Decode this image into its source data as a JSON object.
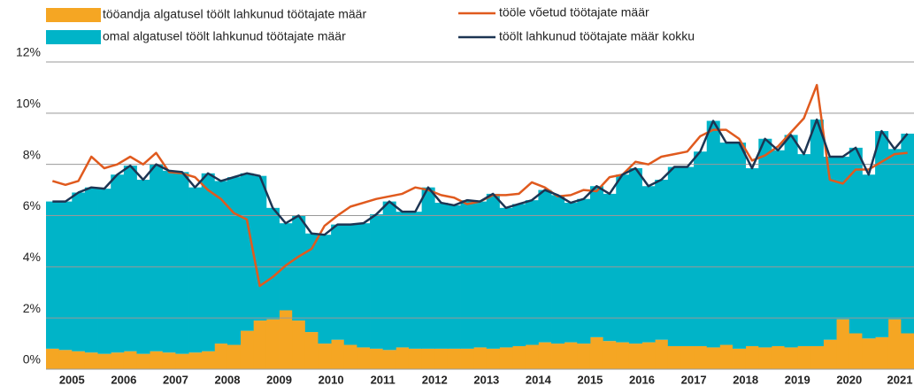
{
  "chart_data": {
    "type": "bar",
    "stacked": true,
    "categories": [
      "2005",
      null,
      null,
      null,
      "2006",
      null,
      null,
      null,
      "2007",
      null,
      null,
      null,
      "2008",
      null,
      null,
      null,
      "2009",
      null,
      null,
      null,
      "2010",
      null,
      null,
      null,
      "2011",
      null,
      null,
      null,
      "2012",
      null,
      null,
      null,
      "2013",
      null,
      null,
      null,
      "2014",
      null,
      null,
      null,
      "2015",
      null,
      null,
      null,
      "2016",
      null,
      null,
      null,
      "2017",
      null,
      null,
      null,
      "2018",
      null,
      null,
      null,
      "2019",
      null,
      null,
      null,
      "2020",
      null,
      null,
      null,
      "2021",
      null,
      null
    ],
    "series": [
      {
        "name": "tööandja algatusel töölt lahkunud töötajate määr",
        "type": "bar",
        "color": "#f5a623",
        "values": [
          0.8,
          0.75,
          0.7,
          0.65,
          0.6,
          0.65,
          0.7,
          0.6,
          0.7,
          0.65,
          0.6,
          0.65,
          0.7,
          1.0,
          0.95,
          1.5,
          1.9,
          1.95,
          2.3,
          1.9,
          1.45,
          1.0,
          1.15,
          0.95,
          0.85,
          0.8,
          0.75,
          0.85,
          0.8,
          0.8,
          0.8,
          0.8,
          0.8,
          0.85,
          0.8,
          0.85,
          0.9,
          0.95,
          1.05,
          1.0,
          1.05,
          1.0,
          1.25,
          1.1,
          1.05,
          1.0,
          1.05,
          1.15,
          0.9,
          0.9,
          0.9,
          0.85,
          0.95,
          0.8,
          0.9,
          0.85,
          0.9,
          0.85,
          0.9,
          0.9,
          1.15,
          1.95,
          1.4,
          1.2,
          1.25,
          1.95,
          1.4
        ]
      },
      {
        "name": "omal algatusel töölt lahkunud töötajate määr",
        "type": "bar",
        "color": "#00b4c8",
        "values": [
          5.75,
          5.8,
          6.2,
          6.45,
          6.45,
          6.95,
          7.25,
          6.8,
          7.3,
          7.1,
          7.1,
          6.45,
          6.95,
          6.35,
          6.55,
          6.15,
          5.65,
          4.35,
          3.4,
          4.1,
          3.85,
          4.25,
          4.5,
          4.7,
          4.85,
          5.25,
          5.8,
          5.3,
          5.35,
          6.3,
          5.7,
          5.6,
          5.8,
          5.7,
          6.05,
          5.45,
          5.55,
          5.65,
          5.95,
          5.8,
          5.45,
          5.65,
          5.9,
          5.75,
          6.55,
          6.85,
          6.1,
          6.25,
          7.0,
          7.0,
          7.6,
          8.85,
          7.9,
          8.05,
          6.95,
          8.15,
          7.65,
          8.3,
          7.5,
          8.85,
          7.15,
          6.35,
          7.25,
          6.4,
          8.05,
          6.65,
          7.8
        ]
      },
      {
        "name": "tööle võetud töötajate määr",
        "type": "line",
        "color": "#e05a1e",
        "values": [
          7.35,
          7.2,
          7.35,
          8.3,
          7.85,
          8.0,
          8.3,
          8.0,
          8.45,
          7.7,
          7.65,
          7.5,
          7.0,
          6.65,
          6.1,
          5.85,
          3.25,
          3.6,
          4.05,
          4.4,
          4.7,
          5.6,
          6.0,
          6.35,
          6.5,
          6.65,
          6.75,
          6.85,
          7.1,
          7.0,
          6.8,
          6.7,
          6.45,
          6.55,
          6.8,
          6.8,
          6.85,
          7.3,
          7.1,
          6.75,
          6.8,
          7.0,
          6.95,
          7.5,
          7.6,
          8.1,
          8.0,
          8.3,
          8.4,
          8.5,
          9.1,
          9.35,
          9.35,
          9.0,
          8.15,
          8.35,
          8.7,
          9.25,
          9.8,
          11.1,
          7.4,
          7.25,
          7.8,
          7.8,
          8.1,
          8.4,
          8.45
        ]
      },
      {
        "name": "töölt lahkunud töötajate määr kokku",
        "type": "line",
        "color": "#1c3553",
        "values": [
          6.55,
          6.55,
          6.9,
          7.1,
          7.05,
          7.6,
          7.95,
          7.4,
          8.0,
          7.75,
          7.7,
          7.1,
          7.65,
          7.35,
          7.5,
          7.65,
          7.55,
          6.3,
          5.7,
          6.0,
          5.3,
          5.25,
          5.65,
          5.65,
          5.7,
          6.05,
          6.55,
          6.15,
          6.15,
          7.1,
          6.5,
          6.4,
          6.6,
          6.55,
          6.85,
          6.3,
          6.45,
          6.6,
          7.0,
          6.8,
          6.5,
          6.65,
          7.15,
          6.85,
          7.6,
          7.85,
          7.15,
          7.4,
          7.9,
          7.9,
          8.5,
          9.7,
          8.85,
          8.85,
          7.85,
          9.0,
          8.55,
          9.15,
          8.4,
          9.75,
          8.3,
          8.3,
          8.65,
          7.6,
          9.3,
          8.6,
          9.2
        ]
      }
    ],
    "ylim": [
      0,
      12
    ],
    "yticks": [
      {
        "value": 0,
        "label": "0%"
      },
      {
        "value": 2,
        "label": "2%"
      },
      {
        "value": 4,
        "label": "4%"
      },
      {
        "value": 6,
        "label": "6%"
      },
      {
        "value": 8,
        "label": "8%"
      },
      {
        "value": 10,
        "label": "10%"
      },
      {
        "value": 12,
        "label": "12%"
      }
    ],
    "grid": true
  }
}
